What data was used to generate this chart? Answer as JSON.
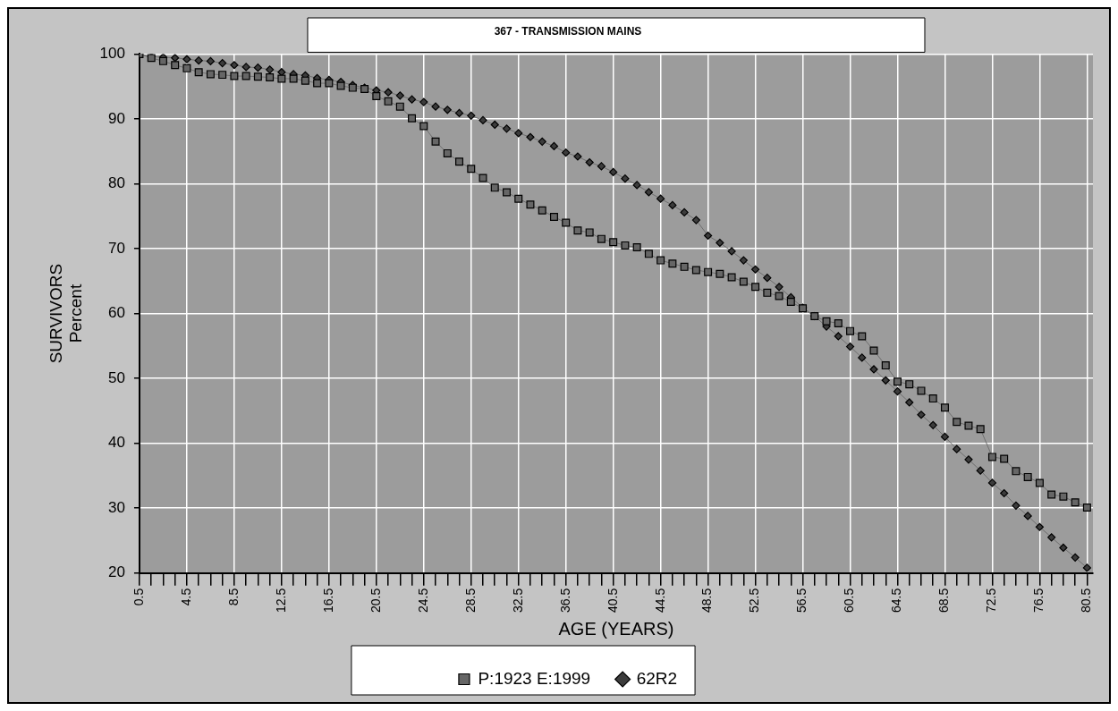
{
  "chart_data": {
    "type": "line",
    "title": "367 - TRANSMISSION MAINS",
    "xlabel": "AGE (YEARS)",
    "ylabel": "SURVIVORS\nPercent",
    "x": [
      0.5,
      1.5,
      2.5,
      3.5,
      4.5,
      5.5,
      6.5,
      7.5,
      8.5,
      9.5,
      10.5,
      11.5,
      12.5,
      13.5,
      14.5,
      15.5,
      16.5,
      17.5,
      18.5,
      19.5,
      20.5,
      21.5,
      22.5,
      23.5,
      24.5,
      25.5,
      26.5,
      27.5,
      28.5,
      29.5,
      30.5,
      31.5,
      32.5,
      33.5,
      34.5,
      35.5,
      36.5,
      37.5,
      38.5,
      39.5,
      40.5,
      41.5,
      42.5,
      43.5,
      44.5,
      45.5,
      46.5,
      47.5,
      48.5,
      49.5,
      50.5,
      51.5,
      52.5,
      53.5,
      54.5,
      55.5,
      56.5,
      57.5,
      58.5,
      59.5,
      60.5,
      61.5,
      62.5,
      63.5,
      64.5,
      65.5,
      66.5,
      67.5,
      68.5,
      69.5,
      70.5,
      71.5,
      72.5,
      73.5,
      74.5,
      75.5,
      76.5,
      77.5,
      78.5,
      79.5,
      80.5
    ],
    "series": [
      {
        "name": "P:1923 E:1999",
        "color": "#666666",
        "marker": "square",
        "values": [
          100,
          99.4,
          98.9,
          98.3,
          97.8,
          97.2,
          96.9,
          96.8,
          96.6,
          96.6,
          96.5,
          96.4,
          96.2,
          96.2,
          95.9,
          95.5,
          95.5,
          95.1,
          94.8,
          94.6,
          93.5,
          92.7,
          91.9,
          90.1,
          88.9,
          86.5,
          84.7,
          83.4,
          82.3,
          80.9,
          79.4,
          78.7,
          77.7,
          76.8,
          75.9,
          74.9,
          74.0,
          72.8,
          72.5,
          71.5,
          71.0,
          70.5,
          70.2,
          69.2,
          68.2,
          67.7,
          67.2,
          66.7,
          66.4,
          66.1,
          65.6,
          64.9,
          64.1,
          63.2,
          62.7,
          61.8,
          60.8,
          59.6,
          58.8,
          58.5,
          57.3,
          56.5,
          54.3,
          52.0,
          49.5,
          49.1,
          48.1,
          46.9,
          45.5,
          43.3,
          42.7,
          42.2,
          37.9,
          37.6,
          35.7,
          34.8,
          33.9,
          32.1,
          31.8,
          30.9,
          30.1
        ]
      },
      {
        "name": "62R2",
        "color": "#3c3c3c",
        "marker": "diamond",
        "values": [
          100,
          99.6,
          99.5,
          99.4,
          99.2,
          99.0,
          98.9,
          98.6,
          98.3,
          98.0,
          97.9,
          97.6,
          97.2,
          96.9,
          96.7,
          96.3,
          96.0,
          95.7,
          95.2,
          94.8,
          94.4,
          94.1,
          93.6,
          93.0,
          92.6,
          91.9,
          91.4,
          90.9,
          90.5,
          89.8,
          89.1,
          88.5,
          87.8,
          87.2,
          86.5,
          85.8,
          84.8,
          84.2,
          83.3,
          82.7,
          81.8,
          80.8,
          79.8,
          78.7,
          77.7,
          76.7,
          75.6,
          74.4,
          72.0,
          70.9,
          69.6,
          68.2,
          66.8,
          65.5,
          64.1,
          62.5,
          60.9,
          59.6,
          58.0,
          56.5,
          54.9,
          53.2,
          51.4,
          49.7,
          48.0,
          46.3,
          44.4,
          42.8,
          41.0,
          39.1,
          37.5,
          35.8,
          33.9,
          32.3,
          30.4,
          28.8,
          27.1,
          25.5,
          23.9,
          22.4,
          20.8
        ]
      }
    ],
    "xlim": [
      0.5,
      81
    ],
    "xticks": [
      0.5,
      {
        "value": 1.5,
        "label": null
      },
      {
        "value": 2.5,
        "label": null
      },
      {
        "value": 3.5,
        "label": null
      },
      4.5,
      {
        "value": 5.5,
        "label": null
      },
      {
        "value": 6.5,
        "label": null
      },
      {
        "value": 7.5,
        "label": null
      },
      8.5,
      {
        "value": 9.5,
        "label": null
      },
      {
        "value": 10.5,
        "label": null
      },
      {
        "value": 11.5,
        "label": null
      },
      12.5,
      {
        "value": 13.5,
        "label": null
      },
      {
        "value": 14.5,
        "label": null
      },
      {
        "value": 15.5,
        "label": null
      },
      16.5,
      {
        "value": 17.5,
        "label": null
      },
      {
        "value": 18.5,
        "label": null
      },
      {
        "value": 19.5,
        "label": null
      },
      20.5,
      {
        "value": 21.5,
        "label": null
      },
      {
        "value": 22.5,
        "label": null
      },
      {
        "value": 23.5,
        "label": null
      },
      24.5,
      {
        "value": 25.5,
        "label": null
      },
      {
        "value": 26.5,
        "label": null
      },
      {
        "value": 27.5,
        "label": null
      },
      28.5,
      {
        "value": 29.5,
        "label": null
      },
      {
        "value": 30.5,
        "label": null
      },
      {
        "value": 31.5,
        "label": null
      },
      32.5,
      {
        "value": 33.5,
        "label": null
      },
      {
        "value": 34.5,
        "label": null
      },
      {
        "value": 35.5,
        "label": null
      },
      36.5,
      {
        "value": 37.5,
        "label": null
      },
      {
        "value": 38.5,
        "label": null
      },
      {
        "value": 39.5,
        "label": null
      },
      40.5,
      {
        "value": 41.5,
        "label": null
      },
      {
        "value": 42.5,
        "label": null
      },
      {
        "value": 43.5,
        "label": null
      },
      44.5,
      {
        "value": 45.5,
        "label": null
      },
      {
        "value": 46.5,
        "label": null
      },
      {
        "value": 47.5,
        "label": null
      },
      48.5,
      {
        "value": 49.5,
        "label": null
      },
      {
        "value": 50.5,
        "label": null
      },
      {
        "value": 51.5,
        "label": null
      },
      52.5,
      {
        "value": 53.5,
        "label": null
      },
      {
        "value": 54.5,
        "label": null
      },
      {
        "value": 55.5,
        "label": null
      },
      56.5,
      {
        "value": 57.5,
        "label": null
      },
      {
        "value": 58.5,
        "label": null
      },
      {
        "value": 59.5,
        "label": null
      },
      60.5,
      {
        "value": 61.5,
        "label": null
      },
      {
        "value": 62.5,
        "label": null
      },
      {
        "value": 63.5,
        "label": null
      },
      64.5,
      {
        "value": 65.5,
        "label": null
      },
      {
        "value": 66.5,
        "label": null
      },
      {
        "value": 67.5,
        "label": null
      },
      68.5,
      {
        "value": 69.5,
        "label": null
      },
      {
        "value": 70.5,
        "label": null
      },
      {
        "value": 71.5,
        "label": null
      },
      72.5,
      {
        "value": 73.5,
        "label": null
      },
      {
        "value": 74.5,
        "label": null
      },
      {
        "value": 75.5,
        "label": null
      },
      76.5,
      {
        "value": 77.5,
        "label": null
      },
      {
        "value": 78.5,
        "label": null
      },
      {
        "value": 79.5,
        "label": null
      },
      80.5
    ],
    "ylim": [
      20,
      100
    ],
    "yticks": [
      20,
      30,
      40,
      50,
      60,
      70,
      80,
      90,
      100
    ],
    "grid": true,
    "legend": "bottom",
    "line_style": "solid"
  }
}
